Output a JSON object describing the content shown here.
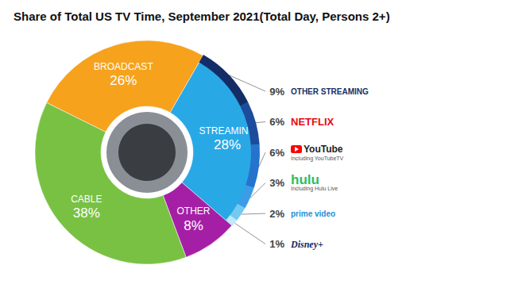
{
  "chart_data": {
    "type": "pie",
    "title": "Share of Total US TV Time, September 2021(Total Day, Persons 2+)",
    "categories": [
      "STREAMING",
      "OTHER",
      "CABLE",
      "BROADCAST"
    ],
    "values": [
      28,
      8,
      38,
      26
    ],
    "value_labels": [
      "28%",
      "8%",
      "38%",
      "26%"
    ],
    "colors": [
      "#29a8e6",
      "#a51fa6",
      "#79c143",
      "#f6a21d"
    ],
    "data_labels": true,
    "breakdown": {
      "categories": [
        "OTHER STREAMING",
        "NETFLIX",
        "YouTube",
        "hulu",
        "prime video",
        "Disney+"
      ],
      "notes": [
        null,
        null,
        "Including YouTubeTV",
        "Including Hulu Live",
        null,
        null
      ],
      "values": [
        9,
        6,
        6,
        3,
        2,
        1
      ],
      "value_labels": [
        "9%",
        "6%",
        "6%",
        "3%",
        "2%",
        "1%"
      ],
      "colors": [
        "#152d66",
        "#1d4c9c",
        "#2573cc",
        "#3b9de6",
        "#74c9f0",
        "#bfe8f8"
      ]
    }
  }
}
